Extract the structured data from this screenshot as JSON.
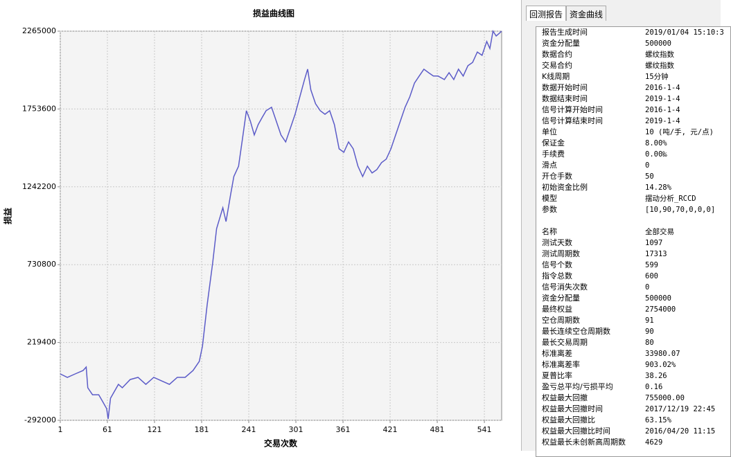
{
  "chart_data": {
    "type": "line",
    "title": "损益曲线图",
    "x_label": "交易次数",
    "y_label": "损益",
    "color": "#5b5bc8",
    "grid": true,
    "x": [
      1,
      10,
      20,
      30,
      34,
      36,
      42,
      50,
      55,
      60,
      62,
      65,
      75,
      80,
      90,
      100,
      110,
      120,
      130,
      140,
      150,
      160,
      170,
      178,
      182,
      188,
      195,
      200,
      208,
      212,
      218,
      222,
      228,
      233,
      238,
      243,
      248,
      253,
      258,
      263,
      270,
      276,
      282,
      288,
      294,
      300,
      306,
      312,
      316,
      320,
      326,
      332,
      338,
      344,
      350,
      356,
      362,
      368,
      374,
      380,
      386,
      392,
      398,
      404,
      410,
      416,
      422,
      428,
      434,
      440,
      446,
      452,
      458,
      464,
      470,
      476,
      482,
      490,
      496,
      502,
      508,
      514,
      520,
      526,
      532,
      538,
      544,
      548,
      552,
      556,
      560,
      563
    ],
    "values": [
      12750,
      -10000,
      12750,
      35000,
      58000,
      -78000,
      -124000,
      -124000,
      -169000,
      -215000,
      -283000,
      -147000,
      -56000,
      -78000,
      -24000,
      -10000,
      -56000,
      -10000,
      -33000,
      -56000,
      -10000,
      -10000,
      35000,
      95000,
      195000,
      468000,
      741000,
      968000,
      1105000,
      1014000,
      1196000,
      1310000,
      1378000,
      1560000,
      1742000,
      1674000,
      1583000,
      1651000,
      1697000,
      1742000,
      1765000,
      1674000,
      1583000,
      1537000,
      1628000,
      1719000,
      1833000,
      1947000,
      2015000,
      1879000,
      1788000,
      1742000,
      1719000,
      1742000,
      1651000,
      1492000,
      1469000,
      1537000,
      1492000,
      1378000,
      1310000,
      1378000,
      1333000,
      1355000,
      1401000,
      1424000,
      1492000,
      1583000,
      1674000,
      1765000,
      1833000,
      1924000,
      1970000,
      2015000,
      1992000,
      1970000,
      1970000,
      1947000,
      1992000,
      1947000,
      2015000,
      1970000,
      2038000,
      2060000,
      2128000,
      2106000,
      2197000,
      2151000,
      2265000,
      2233000,
      2251000,
      2265000
    ],
    "xlim": [
      1,
      563
    ],
    "xticks": [
      1,
      61,
      121,
      181,
      241,
      301,
      361,
      421,
      481,
      541
    ],
    "ylim": [
      -292000,
      2265000
    ],
    "yticks": [
      -292000,
      219400,
      730800,
      1242200,
      1753600,
      2265000
    ]
  },
  "report": {
    "tabs": [
      "回测报告",
      "资金曲线"
    ],
    "groups": [
      {
        "rows": [
          [
            "报告生成时间",
            "2019/01/04 15:10:3"
          ],
          [
            "资金分配量",
            "500000"
          ],
          [
            "数据合约",
            "螺纹指数"
          ],
          [
            "交易合约",
            "螺纹指数"
          ],
          [
            "K线周期",
            "15分钟"
          ],
          [
            "数据开始时间",
            "2016-1-4"
          ],
          [
            "数据结束时间",
            "2019-1-4"
          ],
          [
            "信号计算开始时间",
            "2016-1-4"
          ],
          [
            "信号计算结束时间",
            "2019-1-4"
          ],
          [
            "单位",
            "10 (吨/手, 元/点)"
          ],
          [
            "保证金",
            "8.00%"
          ],
          [
            "手续费",
            "0.00‰"
          ],
          [
            "滑点",
            "0"
          ],
          [
            "开仓手数",
            "50"
          ],
          [
            "初始资金比例",
            "14.28%"
          ],
          [
            "模型",
            "摆动分析_RCCD"
          ],
          [
            "参数",
            "[10,90,70,0,0,0]"
          ]
        ]
      },
      {
        "rows": [
          [
            "名称",
            "全部交易"
          ],
          [
            "测试天数",
            "1097"
          ],
          [
            "测试周期数",
            "17313"
          ],
          [
            "信号个数",
            "599"
          ],
          [
            "指令总数",
            "600"
          ],
          [
            "信号消失次数",
            "0"
          ],
          [
            "资金分配量",
            "500000"
          ],
          [
            "最终权益",
            "2754000"
          ],
          [
            "空仓周期数",
            "91"
          ],
          [
            "最长连续空仓周期数",
            "90"
          ],
          [
            "最长交易周期",
            "80"
          ],
          [
            "标准离差",
            "33980.07"
          ],
          [
            "标准离差率",
            "903.02%"
          ],
          [
            "夏普比率",
            "38.26"
          ],
          [
            "盈亏总平均/亏损平均",
            "0.16"
          ],
          [
            "权益最大回撤",
            "755000.00"
          ],
          [
            "权益最大回撤时间",
            "2017/12/19 22:45"
          ],
          [
            "权益最大回撤比",
            "63.15%"
          ],
          [
            "权益最大回撤比时间",
            "2016/04/20 11:15"
          ],
          [
            "权益最长未创新高周期数",
            "4629"
          ]
        ]
      }
    ]
  }
}
